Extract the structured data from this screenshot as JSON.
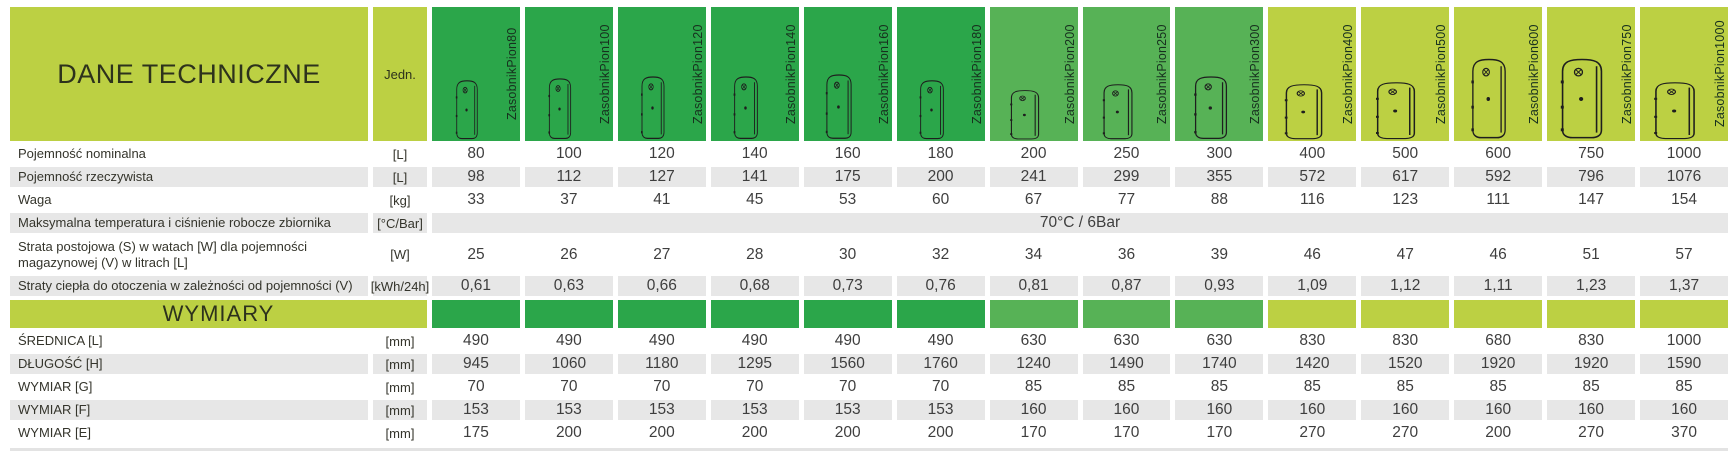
{
  "title": "DANE TECHNICZNE",
  "unit_header": "Jedn.",
  "section_title": "WYMIARY",
  "colors": {
    "yellow_green": "#bcd043",
    "dark_green": "#2ba64a",
    "mid_green": "#57b256",
    "row_gray": "#e7e7e7"
  },
  "products": [
    {
      "name": "ZasobnikPion80",
      "group": "dark_green",
      "icon": "tank-icon"
    },
    {
      "name": "ZasobnikPion100",
      "group": "dark_green",
      "icon": "tank-icon"
    },
    {
      "name": "ZasobnikPion120",
      "group": "dark_green",
      "icon": "tank-icon"
    },
    {
      "name": "ZasobnikPion140",
      "group": "dark_green",
      "icon": "tank-icon"
    },
    {
      "name": "ZasobnikPion160",
      "group": "dark_green",
      "icon": "tank-icon"
    },
    {
      "name": "ZasobnikPion180",
      "group": "dark_green",
      "icon": "tank-icon"
    },
    {
      "name": "ZasobnikPion200",
      "group": "mid_green",
      "icon": "tank-icon"
    },
    {
      "name": "ZasobnikPion250",
      "group": "mid_green",
      "icon": "tank-icon"
    },
    {
      "name": "ZasobnikPion300",
      "group": "mid_green",
      "icon": "tank-icon"
    },
    {
      "name": "ZasobnikPion400",
      "group": "yellow_green",
      "icon": "tank-icon"
    },
    {
      "name": "ZasobnikPion500",
      "group": "yellow_green",
      "icon": "tank-icon"
    },
    {
      "name": "ZasobnikPion600",
      "group": "yellow_green",
      "icon": "tank-icon"
    },
    {
      "name": "ZasobnikPion750",
      "group": "yellow_green",
      "icon": "tank-icon"
    },
    {
      "name": "ZasobnikPion1000",
      "group": "yellow_green",
      "icon": "tank-icon"
    }
  ],
  "rows": [
    {
      "type": "data",
      "label": "Pojemność nominalna",
      "unit": "[L]",
      "values": [
        "80",
        "100",
        "120",
        "140",
        "160",
        "180",
        "200",
        "250",
        "300",
        "400",
        "500",
        "600",
        "750",
        "1000"
      ]
    },
    {
      "type": "data",
      "label": "Pojemność rzeczywista",
      "unit": "[L]",
      "values": [
        "98",
        "112",
        "127",
        "141",
        "175",
        "200",
        "241",
        "299",
        "355",
        "572",
        "617",
        "592",
        "796",
        "1076"
      ]
    },
    {
      "type": "data",
      "label": "Waga",
      "unit": "[kg]",
      "values": [
        "33",
        "37",
        "41",
        "45",
        "53",
        "60",
        "67",
        "77",
        "88",
        "116",
        "123",
        "111",
        "147",
        "154"
      ]
    },
    {
      "type": "span",
      "label": "Maksymalna temperatura i ciśnienie robocze zbiornika",
      "unit": "[°C/Bar]",
      "value": "70°C / 6Bar"
    },
    {
      "type": "data",
      "tall": true,
      "label": "Strata postojowa (S) w watach [W] dla pojemności magazynowej (V) w litrach [L]",
      "unit": "[W]",
      "values": [
        "25",
        "26",
        "27",
        "28",
        "30",
        "32",
        "34",
        "36",
        "39",
        "46",
        "47",
        "46",
        "51",
        "57"
      ]
    },
    {
      "type": "data",
      "label": "Straty ciepła do otoczenia w zależności od pojemności (V)",
      "unit": "[kWh/24h]",
      "values": [
        "0,61",
        "0,63",
        "0,66",
        "0,68",
        "0,73",
        "0,76",
        "0,81",
        "0,87",
        "0,93",
        "1,09",
        "1,12",
        "1,11",
        "1,23",
        "1,37"
      ]
    },
    {
      "type": "section",
      "label": "WYMIARY"
    },
    {
      "type": "data",
      "label": "ŚREDNICA [L]",
      "unit": "[mm]",
      "values": [
        "490",
        "490",
        "490",
        "490",
        "490",
        "490",
        "630",
        "630",
        "630",
        "830",
        "830",
        "680",
        "830",
        "1000"
      ]
    },
    {
      "type": "data",
      "label": "DŁUGOŚĆ [H]",
      "unit": "[mm]",
      "values": [
        "945",
        "1060",
        "1180",
        "1295",
        "1560",
        "1760",
        "1240",
        "1490",
        "1740",
        "1420",
        "1520",
        "1920",
        "1920",
        "1590"
      ]
    },
    {
      "type": "data",
      "label": "WYMIAR [G]",
      "unit": "[mm]",
      "values": [
        "70",
        "70",
        "70",
        "70",
        "70",
        "70",
        "85",
        "85",
        "85",
        "85",
        "85",
        "85",
        "85",
        "85"
      ]
    },
    {
      "type": "data",
      "label": "WYMIAR [F]",
      "unit": "[mm]",
      "values": [
        "153",
        "153",
        "153",
        "153",
        "153",
        "153",
        "160",
        "160",
        "160",
        "160",
        "160",
        "160",
        "160",
        "160"
      ]
    },
    {
      "type": "data",
      "label": "WYMIAR [E]",
      "unit": "[mm]",
      "values": [
        "175",
        "200",
        "200",
        "200",
        "200",
        "200",
        "170",
        "170",
        "170",
        "270",
        "270",
        "200",
        "270",
        "370"
      ]
    }
  ]
}
